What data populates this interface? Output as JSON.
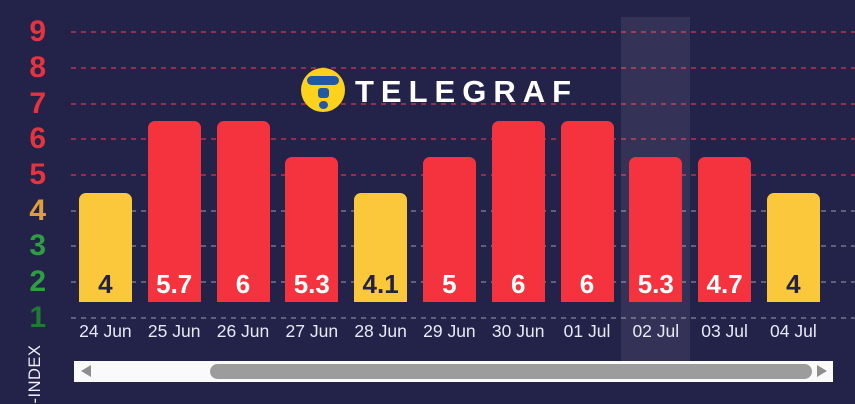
{
  "brand": {
    "name": "TELEGRAF"
  },
  "chart_data": {
    "type": "bar",
    "ylabel": "K-INDEX",
    "categories": [
      "24 Jun",
      "25 Jun",
      "26 Jun",
      "27 Jun",
      "28 Jun",
      "29 Jun",
      "30 Jun",
      "01 Jul",
      "02 Jul",
      "03 Jul",
      "04 Jul"
    ],
    "values": [
      4,
      5.7,
      6,
      5.3,
      4.1,
      5,
      6,
      6,
      5.3,
      4.7,
      4
    ],
    "ylim": [
      0,
      9
    ],
    "yticks": [
      {
        "label": "9",
        "color": "#e5343f"
      },
      {
        "label": "8",
        "color": "#e5343f"
      },
      {
        "label": "7",
        "color": "#e5343f"
      },
      {
        "label": "6",
        "color": "#e5343f"
      },
      {
        "label": "5",
        "color": "#e5343f"
      },
      {
        "label": "4",
        "color": "#dd9f3c"
      },
      {
        "label": "3",
        "color": "#2f9e43"
      },
      {
        "label": "2",
        "color": "#2f9e43"
      },
      {
        "label": "1",
        "color": "#1f7a36"
      }
    ],
    "grid": "horizontal-dashed",
    "legend": "none",
    "highlighted_category": "02 Jul",
    "colors": {
      "background": "#232249",
      "bar_high": "#f5333e",
      "bar_low": "#fbc83b",
      "value_text_on_high": "#ffffff",
      "value_text_on_low": "#222146",
      "grid_high": "rgba(235,60,80,0.55)",
      "grid_low": "rgba(255,255,255,0.28)",
      "highlight_band": "rgba(255,255,255,0.08)",
      "date_label": "#e7eaf4",
      "logo_circle": "#fcd21c",
      "logo_glyph": "#2257a6"
    }
  }
}
